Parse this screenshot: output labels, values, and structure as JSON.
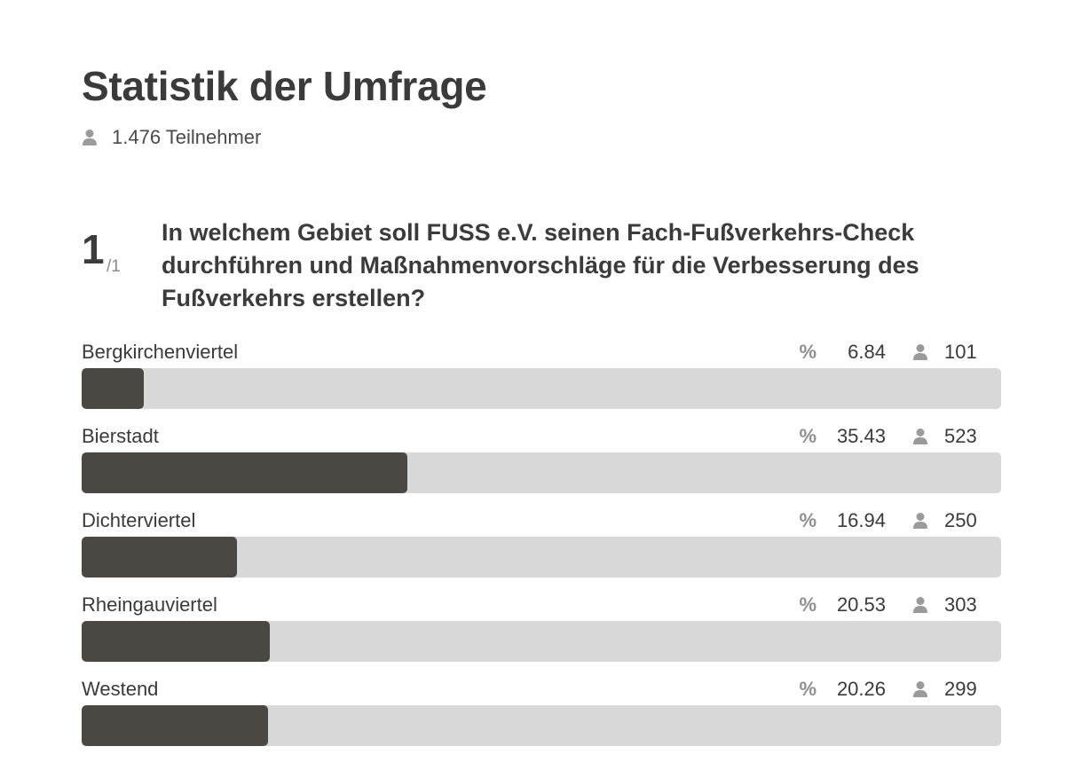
{
  "header": {
    "title": "Statistik der Umfrage",
    "participants": "1.476 Teilnehmer",
    "participants_icon": "person-icon"
  },
  "question": {
    "number": "1",
    "total": "/1",
    "text": "In welchem Gebiet soll FUSS e.V. seinen Fach-Fußverkehrs-Check durchführen und Maßnahmenvorschläge für die Verbesserung des Fußverkehrs erstellen?"
  },
  "answers": [
    {
      "label": "Bergkirchenviertel",
      "percent_sign": "%",
      "percent": "6.84",
      "count": "101",
      "fill_fraction": 0.068
    },
    {
      "label": "Bierstadt",
      "percent_sign": "%",
      "percent": "35.43",
      "count": "523",
      "fill_fraction": 0.354
    },
    {
      "label": "Dichterviertel",
      "percent_sign": "%",
      "percent": "16.94",
      "count": "250",
      "fill_fraction": 0.169
    },
    {
      "label": "Rheingauviertel",
      "percent_sign": "%",
      "percent": "20.53",
      "count": "303",
      "fill_fraction": 0.205
    },
    {
      "label": "Westend",
      "percent_sign": "%",
      "percent": "20.26",
      "count": "299",
      "fill_fraction": 0.203
    }
  ],
  "colors": {
    "bar_fill": "#4b4843",
    "bar_track": "#d8d8d8",
    "icon": "#9a9a9a"
  }
}
